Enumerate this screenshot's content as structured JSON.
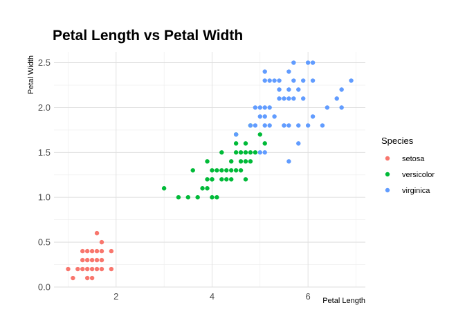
{
  "chart_data": {
    "type": "scatter",
    "title": "Petal Length vs Petal Width",
    "xlabel": "Petal Length",
    "ylabel": "Petal Width",
    "xlim": [
      0.705,
      7.195
    ],
    "ylim": [
      0,
      2.62
    ],
    "x_ticks": [
      2,
      4,
      6
    ],
    "y_ticks": [
      0.0,
      0.5,
      1.0,
      1.5,
      2.0,
      2.5
    ],
    "x_tick_labels": [
      "2",
      "4",
      "6"
    ],
    "y_tick_labels": [
      "0.0",
      "0.5",
      "1.0",
      "1.5",
      "2.0",
      "2.5"
    ],
    "grid": true,
    "legend": {
      "title": "Species",
      "position": "right"
    },
    "series": [
      {
        "name": "setosa",
        "color": "#F8766D",
        "points": [
          [
            1.0,
            0.2
          ],
          [
            1.1,
            0.1
          ],
          [
            1.2,
            0.2
          ],
          [
            1.3,
            0.2
          ],
          [
            1.3,
            0.3
          ],
          [
            1.3,
            0.4
          ],
          [
            1.4,
            0.1
          ],
          [
            1.4,
            0.2
          ],
          [
            1.4,
            0.3
          ],
          [
            1.5,
            0.1
          ],
          [
            1.5,
            0.2
          ],
          [
            1.5,
            0.3
          ],
          [
            1.5,
            0.4
          ],
          [
            1.6,
            0.2
          ],
          [
            1.6,
            0.4
          ],
          [
            1.6,
            0.6
          ],
          [
            1.7,
            0.2
          ],
          [
            1.7,
            0.3
          ],
          [
            1.7,
            0.4
          ],
          [
            1.7,
            0.5
          ],
          [
            1.9,
            0.2
          ],
          [
            1.9,
            0.4
          ],
          [
            1.6,
            0.3
          ],
          [
            1.4,
            0.4
          ]
        ]
      },
      {
        "name": "versicolor",
        "color": "#00BA38",
        "points": [
          [
            3.0,
            1.1
          ],
          [
            3.3,
            1.0
          ],
          [
            3.5,
            1.0
          ],
          [
            3.6,
            1.3
          ],
          [
            3.7,
            1.0
          ],
          [
            3.8,
            1.1
          ],
          [
            3.9,
            1.1
          ],
          [
            3.9,
            1.2
          ],
          [
            3.9,
            1.4
          ],
          [
            4.0,
            1.0
          ],
          [
            4.0,
            1.2
          ],
          [
            4.0,
            1.3
          ],
          [
            4.1,
            1.0
          ],
          [
            4.1,
            1.3
          ],
          [
            4.2,
            1.2
          ],
          [
            4.2,
            1.3
          ],
          [
            4.2,
            1.5
          ],
          [
            4.3,
            1.3
          ],
          [
            4.4,
            1.2
          ],
          [
            4.4,
            1.3
          ],
          [
            4.4,
            1.4
          ],
          [
            4.5,
            1.3
          ],
          [
            4.5,
            1.5
          ],
          [
            4.5,
            1.7
          ],
          [
            4.6,
            1.3
          ],
          [
            4.6,
            1.4
          ],
          [
            4.6,
            1.5
          ],
          [
            4.7,
            1.2
          ],
          [
            4.7,
            1.4
          ],
          [
            4.7,
            1.5
          ],
          [
            4.7,
            1.6
          ],
          [
            4.8,
            1.4
          ],
          [
            4.8,
            1.8
          ],
          [
            4.9,
            1.5
          ],
          [
            5.0,
            1.7
          ],
          [
            5.1,
            1.6
          ],
          [
            4.8,
            1.5
          ],
          [
            4.5,
            1.6
          ],
          [
            4.3,
            1.2
          ],
          [
            4.0,
            1.2
          ]
        ]
      },
      {
        "name": "virginica",
        "color": "#619CFF",
        "points": [
          [
            4.5,
            1.7
          ],
          [
            4.8,
            1.8
          ],
          [
            4.9,
            1.8
          ],
          [
            4.9,
            2.0
          ],
          [
            5.0,
            1.5
          ],
          [
            5.0,
            1.9
          ],
          [
            5.0,
            2.0
          ],
          [
            5.1,
            1.5
          ],
          [
            5.1,
            1.8
          ],
          [
            5.1,
            1.9
          ],
          [
            5.1,
            2.0
          ],
          [
            5.1,
            2.3
          ],
          [
            5.1,
            2.4
          ],
          [
            5.2,
            2.0
          ],
          [
            5.2,
            2.3
          ],
          [
            5.3,
            1.9
          ],
          [
            5.3,
            2.3
          ],
          [
            5.4,
            2.1
          ],
          [
            5.4,
            2.3
          ],
          [
            5.5,
            1.8
          ],
          [
            5.5,
            2.1
          ],
          [
            5.5,
            1.8
          ],
          [
            5.6,
            1.4
          ],
          [
            5.6,
            1.8
          ],
          [
            5.6,
            2.1
          ],
          [
            5.6,
            2.2
          ],
          [
            5.6,
            2.4
          ],
          [
            5.7,
            2.1
          ],
          [
            5.7,
            2.3
          ],
          [
            5.7,
            2.5
          ],
          [
            5.8,
            1.6
          ],
          [
            5.8,
            1.8
          ],
          [
            5.8,
            2.2
          ],
          [
            5.9,
            2.1
          ],
          [
            5.9,
            2.3
          ],
          [
            6.0,
            1.8
          ],
          [
            6.0,
            2.5
          ],
          [
            6.1,
            1.9
          ],
          [
            6.1,
            2.3
          ],
          [
            6.1,
            2.5
          ],
          [
            6.3,
            1.8
          ],
          [
            6.4,
            2.0
          ],
          [
            6.6,
            2.1
          ],
          [
            6.7,
            2.0
          ],
          [
            6.7,
            2.2
          ],
          [
            6.9,
            2.3
          ],
          [
            5.2,
            1.8
          ],
          [
            5.4,
            2.2
          ]
        ]
      }
    ]
  }
}
